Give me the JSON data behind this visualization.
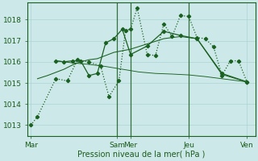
{
  "xlabel": "Pression niveau de la mer( hPa )",
  "bg_color": "#cce8e8",
  "grid_color": "#aad4d4",
  "line_color": "#1a6020",
  "label_color": "#1a5c1a",
  "xtick_labels": [
    "Mar",
    "Sam",
    "Mer",
    "Jeu",
    "Ven"
  ],
  "xtick_positions": [
    0,
    5.2,
    6.0,
    9.5,
    13.0
  ],
  "vline_positions": [
    5.2,
    6.0,
    9.5
  ],
  "ylim": [
    1012.5,
    1018.8
  ],
  "xlim": [
    -0.2,
    13.5
  ],
  "yticks": [
    1013,
    1014,
    1015,
    1016,
    1017,
    1018
  ],
  "line1_x": [
    0,
    0.4,
    1.5,
    2.2,
    2.8,
    3.5,
    4.2,
    4.7,
    5.3,
    5.7,
    6.0,
    6.4,
    7.0,
    7.5,
    8.0,
    8.5,
    9.0,
    9.5,
    10.0,
    10.5,
    11.0,
    11.5,
    12.0,
    12.5,
    13.0
  ],
  "line1_y": [
    1013.0,
    1013.4,
    1015.2,
    1015.1,
    1016.1,
    1016.0,
    1015.8,
    1014.35,
    1015.1,
    1017.5,
    1017.55,
    1018.55,
    1016.35,
    1016.3,
    1017.8,
    1017.2,
    1018.2,
    1018.15,
    1017.15,
    1017.1,
    1016.7,
    1015.35,
    1016.05,
    1016.05,
    1015.05
  ],
  "line2_x": [
    0.4,
    1.0,
    1.5,
    2.0,
    2.5,
    3.0,
    3.5,
    4.0,
    5.0,
    6.0,
    7.0,
    8.0,
    9.0,
    10.0,
    11.5,
    13.0
  ],
  "line2_y": [
    1015.2,
    1015.35,
    1015.5,
    1015.65,
    1015.85,
    1016.0,
    1016.1,
    1016.15,
    1016.45,
    1016.6,
    1016.85,
    1017.1,
    1017.2,
    1017.1,
    1015.4,
    1015.05
  ],
  "line3_x": [
    1.5,
    2.0,
    2.5,
    3.0,
    3.5,
    4.0,
    4.5,
    5.0,
    5.5,
    6.0,
    7.0,
    8.0,
    9.0,
    10.0,
    11.5,
    13.0
  ],
  "line3_y": [
    1016.05,
    1016.0,
    1016.05,
    1016.05,
    1015.35,
    1015.45,
    1016.9,
    1017.1,
    1017.55,
    1016.35,
    1016.75,
    1017.45,
    1017.25,
    1017.1,
    1015.45,
    1015.05
  ],
  "line4_x": [
    1.5,
    2.5,
    3.5,
    4.5,
    5.5,
    6.5,
    7.5,
    8.5,
    9.5,
    10.5,
    11.5,
    13.0
  ],
  "line4_y": [
    1016.05,
    1015.95,
    1015.88,
    1015.78,
    1015.65,
    1015.52,
    1015.45,
    1015.42,
    1015.38,
    1015.3,
    1015.2,
    1015.05
  ]
}
